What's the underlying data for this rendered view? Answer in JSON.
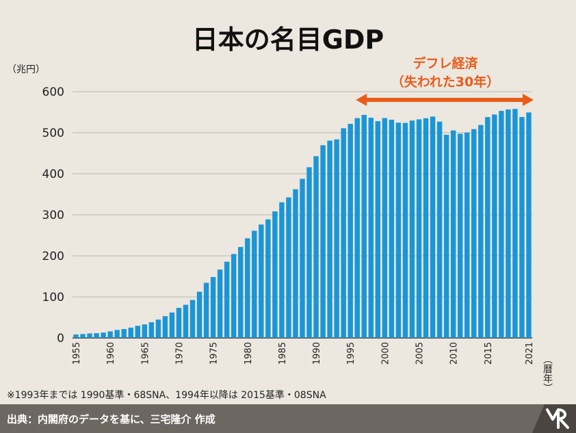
{
  "chart_data": {
    "type": "bar",
    "title": "日本の名目GDP",
    "ylabel": "（兆円）",
    "xlabel": "（暦年）",
    "ylim": [
      0,
      600
    ],
    "yticks": [
      "0",
      "100",
      "200",
      "300",
      "400",
      "500",
      "600"
    ],
    "xtick_labels": [
      "1955",
      "1960",
      "1965",
      "1970",
      "1975",
      "1980",
      "1985",
      "1990",
      "1995",
      "2000",
      "2005",
      "2010",
      "2015",
      "2021"
    ],
    "x": [
      1955,
      1956,
      1957,
      1958,
      1959,
      1960,
      1961,
      1962,
      1963,
      1964,
      1965,
      1966,
      1967,
      1968,
      1969,
      1970,
      1971,
      1972,
      1973,
      1974,
      1975,
      1976,
      1977,
      1978,
      1979,
      1980,
      1981,
      1982,
      1983,
      1984,
      1985,
      1986,
      1987,
      1988,
      1989,
      1990,
      1991,
      1992,
      1993,
      1994,
      1995,
      1996,
      1997,
      1998,
      1999,
      2000,
      2001,
      2002,
      2003,
      2004,
      2005,
      2006,
      2007,
      2008,
      2009,
      2010,
      2011,
      2012,
      2013,
      2014,
      2015,
      2016,
      2017,
      2018,
      2019,
      2020,
      2021
    ],
    "values": [
      8.4,
      9.4,
      10.9,
      11.5,
      13.0,
      16.0,
      19.3,
      21.6,
      25.0,
      29.5,
      32.9,
      38.2,
      44.7,
      53.0,
      61.9,
      73.3,
      80.7,
      92.4,
      112.5,
      134.2,
      148.3,
      166.6,
      185.6,
      204.4,
      221.5,
      242.8,
      261.1,
      276.2,
      288.8,
      308.2,
      330.4,
      342.3,
      362.3,
      387.7,
      415.9,
      442.8,
      469.4,
      480.8,
      483.7,
      510.9,
      521.6,
      535.6,
      543.5,
      536.5,
      528.1,
      535.6,
      531.7,
      524.5,
      523.9,
      529.6,
      532.5,
      535.2,
      539.3,
      527.0,
      494.9,
      505.5,
      497.4,
      500.5,
      508.7,
      518.8,
      538.0,
      544.4,
      553.1,
      556.6,
      557.9,
      538.2,
      549.4
    ],
    "bar_color": "#1a96d6",
    "grid": true,
    "annotation": {
      "line1": "デフレ経済",
      "line2": "（失われた30年）",
      "x_start": 1997,
      "x_end": 2021,
      "color": "#e85c1a"
    }
  },
  "note": "※1993年までは 1990基準・68SNA、1994年以降は 2015基準・08SNA",
  "footer": {
    "source": "出典：内閣府のデータを基に、三宅隆介 作成",
    "logo_icon": "mr-logo-icon"
  }
}
